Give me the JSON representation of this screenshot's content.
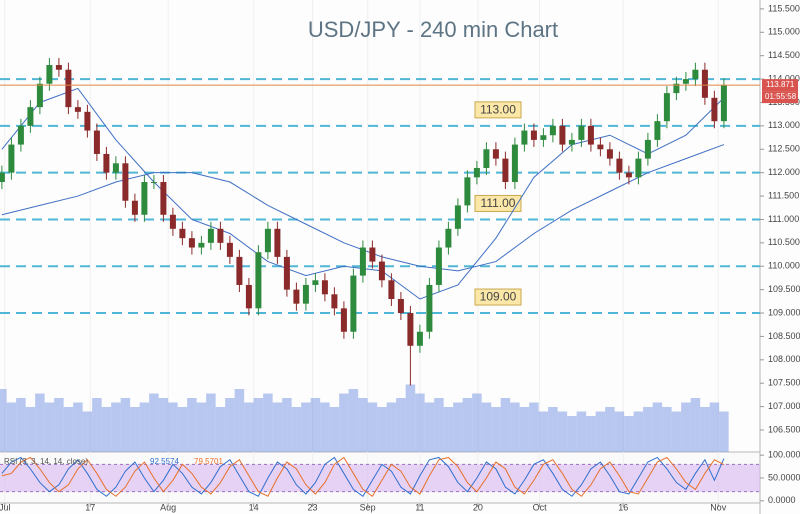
{
  "chart_data": {
    "type": "candlestick",
    "title": "USD/JPY - 240 min Chart",
    "xlim": [
      -0.2,
      79.8
    ],
    "xticks": [
      {
        "value": 0.3,
        "label": "Jul"
      },
      {
        "value": 9.3,
        "label": "17"
      },
      {
        "value": 17.5,
        "label": "Aug"
      },
      {
        "value": 26.5,
        "label": "14"
      },
      {
        "value": 32.7,
        "label": "23"
      },
      {
        "value": 38.5,
        "label": "Sep"
      },
      {
        "value": 44,
        "label": "11"
      },
      {
        "value": 50.1,
        "label": "20"
      },
      {
        "value": 56.6,
        "label": "Oct"
      },
      {
        "value": 65.4,
        "label": "16"
      },
      {
        "value": 75.4,
        "label": "Nov"
      }
    ],
    "ylim": [
      106.03,
      115.69
    ],
    "yticks": [
      {
        "value": 106.5,
        "label": "106.500"
      },
      {
        "value": 107,
        "label": "107.000"
      },
      {
        "value": 107.5,
        "label": "107.500"
      },
      {
        "value": 108,
        "label": "108.000"
      },
      {
        "value": 108.5,
        "label": "108.500"
      },
      {
        "value": 109,
        "label": "109.000"
      },
      {
        "value": 109.5,
        "label": "109.500"
      },
      {
        "value": 110,
        "label": "110.000"
      },
      {
        "value": 110.5,
        "label": "110.500"
      },
      {
        "value": 111,
        "label": "111.000"
      },
      {
        "value": 111.5,
        "label": "111.500"
      },
      {
        "value": 112,
        "label": "112.000"
      },
      {
        "value": 112.5,
        "label": "112.500"
      },
      {
        "value": 113,
        "label": "113.000"
      },
      {
        "value": 113.5,
        "label": "113.500"
      },
      {
        "value": 114,
        "label": "114.000"
      },
      {
        "value": 114.5,
        "label": "114.500"
      },
      {
        "value": 115,
        "label": "115.000"
      },
      {
        "value": 115.5,
        "label": "115.500"
      }
    ],
    "up_color": "#2e8b3e",
    "down_color": "#8b2a2a",
    "open": [
      111.8,
      112.0,
      112.6,
      113.0,
      113.4,
      113.9,
      114.3,
      114.2,
      113.4,
      113.3,
      112.9,
      112.4,
      112.0,
      112.2,
      111.4,
      111.1,
      111.8,
      111.8,
      111.1,
      110.8,
      110.6,
      110.4,
      110.5,
      110.8,
      110.5,
      110.2,
      109.6,
      109.1,
      110.3,
      110.8,
      110.2,
      109.5,
      109.2,
      109.6,
      109.7,
      109.4,
      109.1,
      108.6,
      109.8,
      110.4,
      110.1,
      109.7,
      109.3,
      109.0,
      108.3,
      108.6,
      109.6,
      110.4,
      110.8,
      111.3,
      111.9,
      112.1,
      112.5,
      112.3,
      111.8,
      112.6,
      112.9,
      112.7,
      112.8,
      113.0,
      112.6,
      112.7,
      113.0,
      112.6,
      112.5,
      112.3,
      112.0,
      111.9,
      112.3,
      112.7,
      113.1,
      113.7,
      113.9,
      114.0,
      114.2,
      113.6,
      113.1
    ],
    "high": [
      112.15,
      112.75,
      113.15,
      113.55,
      114.05,
      114.45,
      114.45,
      114.35,
      113.55,
      113.45,
      113.05,
      112.55,
      112.35,
      112.35,
      111.55,
      111.95,
      111.95,
      111.95,
      111.25,
      110.95,
      110.75,
      110.65,
      110.95,
      110.95,
      110.65,
      110.35,
      109.75,
      110.45,
      110.95,
      110.95,
      110.35,
      109.65,
      109.75,
      109.85,
      109.85,
      109.55,
      109.25,
      109.95,
      110.55,
      110.55,
      110.25,
      109.85,
      109.45,
      109.15,
      108.75,
      109.75,
      110.55,
      110.95,
      111.45,
      112.05,
      112.25,
      112.65,
      112.65,
      112.45,
      112.75,
      113.05,
      113.05,
      112.95,
      113.15,
      113.15,
      112.85,
      113.15,
      113.15,
      112.75,
      112.65,
      112.45,
      112.15,
      112.45,
      112.85,
      113.25,
      113.85,
      114.05,
      114.15,
      114.35,
      114.35,
      113.75,
      114.02
    ],
    "low": [
      111.65,
      111.85,
      112.45,
      112.85,
      113.25,
      113.75,
      114.05,
      113.25,
      113.15,
      112.75,
      112.25,
      111.85,
      111.85,
      111.25,
      110.95,
      110.95,
      111.65,
      110.95,
      110.65,
      110.45,
      110.25,
      110.25,
      110.35,
      110.35,
      110.05,
      109.45,
      108.95,
      108.95,
      110.15,
      110.05,
      109.35,
      109.05,
      109.05,
      109.45,
      109.25,
      108.95,
      108.45,
      108.45,
      109.65,
      109.95,
      109.55,
      109.15,
      108.85,
      107.45,
      108.15,
      108.45,
      109.45,
      110.25,
      110.65,
      111.15,
      111.75,
      111.95,
      112.15,
      111.65,
      111.65,
      112.45,
      112.55,
      112.55,
      112.65,
      112.45,
      112.45,
      112.55,
      112.45,
      112.35,
      112.15,
      111.85,
      111.75,
      111.75,
      112.15,
      112.55,
      112.95,
      113.55,
      113.75,
      113.85,
      113.45,
      112.95,
      112.95
    ],
    "close": [
      112.0,
      112.6,
      113.0,
      113.4,
      113.9,
      114.3,
      114.2,
      113.4,
      113.3,
      112.9,
      112.4,
      112.0,
      112.2,
      111.4,
      111.1,
      111.8,
      111.8,
      111.1,
      110.8,
      110.6,
      110.4,
      110.5,
      110.8,
      110.5,
      110.2,
      109.6,
      109.1,
      110.3,
      110.8,
      110.2,
      109.5,
      109.2,
      109.6,
      109.7,
      109.4,
      109.1,
      108.6,
      109.8,
      110.4,
      110.1,
      109.7,
      109.3,
      109.0,
      108.3,
      108.6,
      109.6,
      110.4,
      110.8,
      111.3,
      111.9,
      112.1,
      112.5,
      112.3,
      111.8,
      112.6,
      112.9,
      112.7,
      112.8,
      113.0,
      112.6,
      112.7,
      113.0,
      112.6,
      112.5,
      112.3,
      112.0,
      111.9,
      112.3,
      112.7,
      113.1,
      113.7,
      113.9,
      114.0,
      114.2,
      113.6,
      113.1,
      113.871
    ],
    "moving_averages": [
      {
        "color": "#3f6fc4",
        "x": [
          0,
          4,
          8,
          12,
          16,
          20,
          24,
          28,
          32,
          36,
          40,
          44,
          48,
          52,
          56,
          60,
          64,
          68,
          72,
          76
        ],
        "values": [
          112.5,
          113.5,
          113.8,
          112.7,
          111.8,
          111.0,
          110.7,
          110.1,
          109.8,
          110.0,
          109.9,
          109.3,
          109.6,
          110.6,
          111.9,
          112.6,
          112.8,
          112.4,
          112.8,
          113.6
        ]
      },
      {
        "color": "#3f6fc4",
        "x": [
          0,
          4,
          8,
          12,
          16,
          20,
          24,
          28,
          32,
          36,
          40,
          44,
          48,
          52,
          56,
          60,
          64,
          68,
          72,
          76
        ],
        "values": [
          111.1,
          111.3,
          111.5,
          111.8,
          112.0,
          112.0,
          111.8,
          111.3,
          110.9,
          110.5,
          110.2,
          110.0,
          109.9,
          110.1,
          110.7,
          111.2,
          111.6,
          112.0,
          112.3,
          112.6
        ]
      }
    ],
    "levels": [
      114,
      113,
      112,
      111,
      110,
      109
    ],
    "level_color": "#4fb6d6",
    "level_labels": [
      {
        "value": 113,
        "label": "113.00"
      },
      {
        "value": 111,
        "label": "111.00"
      },
      {
        "value": 109,
        "label": "109.00"
      }
    ],
    "countdown": "01:55:58",
    "volume": [
      70,
      55,
      60,
      50,
      65,
      55,
      60,
      50,
      55,
      45,
      60,
      50,
      55,
      60,
      50,
      55,
      65,
      60,
      55,
      50,
      60,
      55,
      65,
      50,
      60,
      70,
      55,
      60,
      65,
      55,
      60,
      50,
      55,
      60,
      55,
      50,
      65,
      70,
      60,
      55,
      50,
      55,
      60,
      75,
      65,
      55,
      60,
      50,
      55,
      60,
      65,
      55,
      50,
      60,
      55,
      50,
      55,
      45,
      50,
      45,
      40,
      45,
      40,
      45,
      50,
      45,
      40,
      45,
      50,
      55,
      50,
      45,
      55,
      60,
      50,
      55,
      45
    ],
    "volume_color": "#7f9be6",
    "rsi": {
      "label": "RSI (3, 3, 14, 14, close)",
      "ylim": [
        -7,
        107
      ],
      "yticks": [
        {
          "value": 100,
          "label": "100.0000"
        },
        {
          "value": 50,
          "label": "50.0000"
        },
        {
          "value": 0,
          "label": "0.0000"
        }
      ],
      "band": [
        20,
        80
      ],
      "series": [
        {
          "color": "#2f6fd0",
          "values": [
            60,
            85,
            95,
            70,
            40,
            20,
            35,
            70,
            90,
            60,
            25,
            10,
            30,
            65,
            85,
            50,
            20,
            45,
            80,
            60,
            30,
            15,
            40,
            75,
            90,
            55,
            20,
            10,
            50,
            85,
            70,
            35,
            15,
            40,
            80,
            95,
            60,
            25,
            10,
            45,
            80,
            65,
            30,
            15,
            55,
            90,
            95,
            75,
            40,
            20,
            50,
            85,
            70,
            30,
            15,
            45,
            80,
            90,
            60,
            25,
            10,
            35,
            70,
            85,
            55,
            20,
            15,
            50,
            85,
            95,
            70,
            40,
            25,
            60,
            90,
            45,
            92.5574
          ]
        },
        {
          "color": "#e8702a",
          "values": [
            55,
            60,
            85,
            95,
            70,
            40,
            20,
            35,
            70,
            90,
            60,
            25,
            10,
            30,
            65,
            85,
            50,
            20,
            45,
            80,
            60,
            30,
            15,
            40,
            75,
            90,
            55,
            20,
            10,
            50,
            85,
            70,
            35,
            15,
            40,
            80,
            95,
            60,
            25,
            10,
            45,
            80,
            65,
            30,
            15,
            55,
            90,
            95,
            75,
            40,
            20,
            50,
            85,
            70,
            30,
            15,
            45,
            80,
            90,
            60,
            25,
            10,
            35,
            70,
            85,
            55,
            20,
            15,
            50,
            85,
            95,
            70,
            40,
            25,
            60,
            90,
            79.5701
          ]
        }
      ]
    }
  }
}
